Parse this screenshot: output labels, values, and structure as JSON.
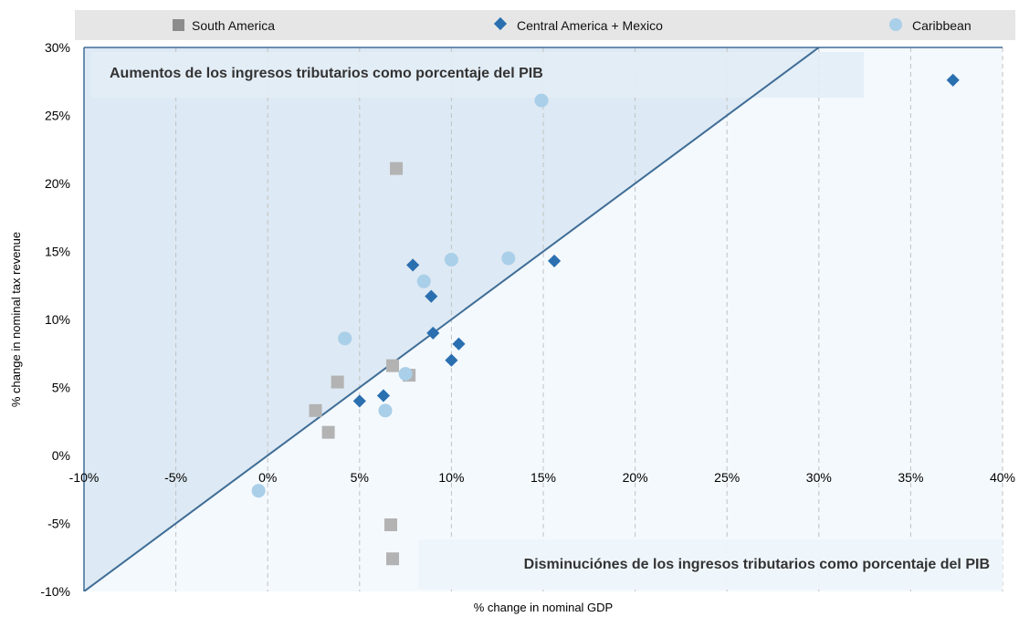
{
  "chart_data": {
    "type": "scatter",
    "xlabel": "% change in nominal GDP",
    "ylabel": "% change in nominal tax revenue",
    "xlim": [
      -10,
      40
    ],
    "ylim": [
      -10,
      30
    ],
    "x_ticks": [
      -10,
      -5,
      0,
      5,
      10,
      15,
      20,
      25,
      30,
      35,
      40
    ],
    "y_ticks": [
      -10,
      -5,
      0,
      5,
      10,
      15,
      20,
      25,
      30
    ],
    "x_tick_labels": [
      "-10%",
      "-5%",
      "0%",
      "5%",
      "10%",
      "15%",
      "20%",
      "25%",
      "30%",
      "35%",
      "40%"
    ],
    "y_tick_labels": [
      "-10%",
      "-5%",
      "0%",
      "5%",
      "10%",
      "15%",
      "20%",
      "25%",
      "30%"
    ],
    "grid": "vertical dashed",
    "legend_position": "top",
    "reference_line": "y = x",
    "annotations": {
      "upper": "Aumentos de los ingresos tributarios como porcentaje del PIB",
      "lower": "Disminuciónes de los ingresos tributarios como porcentaje del PIB"
    },
    "series": [
      {
        "name": "South America",
        "marker": "square",
        "color": "#b3b3b3",
        "legend_color": "#8c8c8c",
        "points": [
          [
            7,
            21.1
          ],
          [
            6.8,
            6.6
          ],
          [
            7.7,
            5.9
          ],
          [
            3.8,
            5.4
          ],
          [
            2.6,
            3.3
          ],
          [
            3.3,
            1.7
          ],
          [
            6.7,
            -5.1
          ],
          [
            6.8,
            -7.6
          ]
        ]
      },
      {
        "name": "Central America + Mexico",
        "marker": "diamond",
        "color": "#2a6fb0",
        "legend_color": "#2a6fb0",
        "points": [
          [
            37.3,
            27.6
          ],
          [
            15.6,
            14.3
          ],
          [
            7.9,
            14
          ],
          [
            8.9,
            11.7
          ],
          [
            9,
            9
          ],
          [
            10.4,
            8.2
          ],
          [
            10,
            7
          ],
          [
            5,
            4
          ],
          [
            6.3,
            4.4
          ]
        ]
      },
      {
        "name": "Caribbean",
        "marker": "circle",
        "color": "#a9cfe9",
        "legend_color": "#a9cfe9",
        "points": [
          [
            14.9,
            26.1
          ],
          [
            10,
            14.4
          ],
          [
            13.1,
            14.5
          ],
          [
            8.5,
            12.8
          ],
          [
            4.2,
            8.6
          ],
          [
            7.5,
            6
          ],
          [
            6.4,
            3.3
          ],
          [
            -0.5,
            -2.6
          ]
        ]
      }
    ],
    "colors": {
      "upper_fill": "#dde9f4",
      "lower_fill": "#f4f9fd",
      "line": "#3f6d96",
      "legend_bg": "#e6e6e6"
    }
  }
}
